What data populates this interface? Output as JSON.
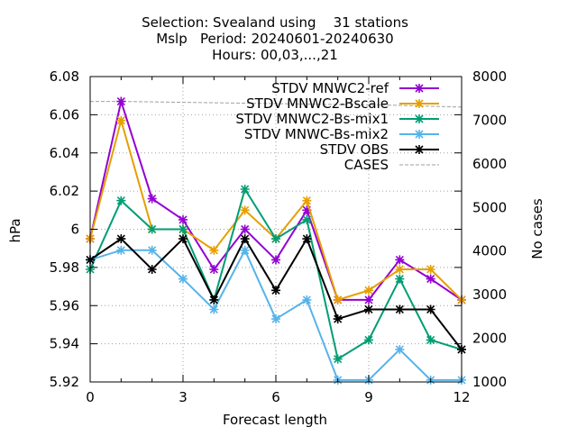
{
  "chart_data": {
    "type": "line",
    "title_lines": [
      "Selection: Svealand using    31 stations",
      "Mslp   Period: 20240601-20240630",
      "Hours: 00,03,...,21"
    ],
    "xlabel": "Forecast length",
    "ylabel": "hPa",
    "y2label": "No cases",
    "xlim": [
      0,
      12
    ],
    "ylim": [
      5.92,
      6.08
    ],
    "y2lim": [
      1000,
      8000
    ],
    "xticks": [
      0,
      3,
      6,
      9,
      12
    ],
    "yticks": [
      5.92,
      5.94,
      5.96,
      5.98,
      6,
      6.02,
      6.04,
      6.06,
      6.08
    ],
    "ytick_labels": [
      "5.92",
      "5.94",
      "5.96",
      "5.98",
      "6",
      "6.02",
      "6.04",
      "6.06",
      "6.08"
    ],
    "y2ticks": [
      1000,
      2000,
      3000,
      4000,
      5000,
      6000,
      7000,
      8000
    ],
    "grid": true,
    "legend_position": "top-right",
    "x": [
      0,
      1,
      2,
      3,
      4,
      5,
      6,
      7,
      8,
      9,
      10,
      11,
      12
    ],
    "series": [
      {
        "name": "STDV MNWC2-ref",
        "color": "#9400d3",
        "axis": "y1",
        "values": [
          5.995,
          6.067,
          6.016,
          6.005,
          5.979,
          6.0,
          5.984,
          6.01,
          5.963,
          5.963,
          5.984,
          5.974,
          5.963
        ]
      },
      {
        "name": "STDV MNWC2-Bscale",
        "color": "#e69f00",
        "axis": "y1",
        "values": [
          5.995,
          6.057,
          6.0,
          6.0,
          5.989,
          6.01,
          5.995,
          6.015,
          5.963,
          5.968,
          5.979,
          5.979,
          5.963
        ]
      },
      {
        "name": "STDV MNWC2-Bs-mix1",
        "color": "#009e73",
        "axis": "y1",
        "values": [
          5.979,
          6.015,
          6.0,
          6.0,
          5.963,
          6.021,
          5.995,
          6.005,
          5.932,
          5.942,
          5.974,
          5.942,
          5.937
        ]
      },
      {
        "name": "STDV MNWC-Bs-mix2",
        "color": "#56b4e9",
        "axis": "y1",
        "values": [
          5.984,
          5.989,
          5.989,
          5.974,
          5.958,
          5.989,
          5.953,
          5.963,
          5.921,
          5.921,
          5.937,
          5.921,
          5.921
        ]
      },
      {
        "name": "STDV OBS",
        "color": "#000000",
        "axis": "y1",
        "values": [
          5.984,
          5.995,
          5.979,
          5.995,
          5.963,
          5.995,
          5.968,
          5.995,
          5.953,
          5.958,
          5.958,
          5.958,
          5.937
        ]
      },
      {
        "name": "CASES",
        "color": "#a0a0a0",
        "axis": "y2",
        "dashed": true,
        "values": [
          7430,
          7430,
          7420,
          7410,
          7400,
          7390,
          7380,
          7370,
          7360,
          7350,
          7340,
          7320,
          7300
        ]
      }
    ]
  }
}
